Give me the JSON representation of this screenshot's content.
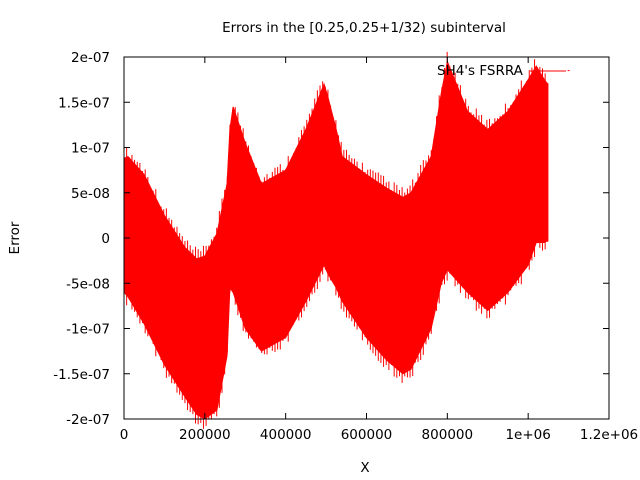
{
  "chart_data": {
    "type": "area",
    "title": "Errors in the [0.25,0.25+1/32) subinterval",
    "xlabel": "X",
    "ylabel": "Error",
    "xlim": [
      0,
      1200000
    ],
    "ylim": [
      -2e-07,
      2e-07
    ],
    "x_ticks": [
      {
        "value": 0,
        "label": "0"
      },
      {
        "value": 200000,
        "label": "200000"
      },
      {
        "value": 400000,
        "label": "400000"
      },
      {
        "value": 600000,
        "label": "600000"
      },
      {
        "value": 800000,
        "label": "800000"
      },
      {
        "value": 1000000,
        "label": "1e+06"
      },
      {
        "value": 1200000,
        "label": "1.2e+06"
      }
    ],
    "y_ticks": [
      {
        "value": 2e-07,
        "label": "2e-07"
      },
      {
        "value": 1.5e-07,
        "label": "1.5e-07"
      },
      {
        "value": 1e-07,
        "label": "1e-07"
      },
      {
        "value": 5e-08,
        "label": "5e-08"
      },
      {
        "value": 0,
        "label": "0"
      },
      {
        "value": -5e-08,
        "label": "-5e-08"
      },
      {
        "value": -1e-07,
        "label": "-1e-07"
      },
      {
        "value": -1.5e-07,
        "label": "-1.5e-07"
      },
      {
        "value": -2e-07,
        "label": "-2e-07"
      }
    ],
    "grid": false,
    "legend_position": "top-right",
    "series": [
      {
        "name": "SH4's FSRRA",
        "color": "#ff0000",
        "x": [
          0,
          10000,
          50000,
          100000,
          150000,
          180000,
          200000,
          230000,
          255000,
          262000,
          270000,
          300000,
          340000,
          400000,
          450000,
          495000,
          505000,
          525000,
          540000,
          600000,
          650000,
          690000,
          710000,
          760000,
          785000,
          800000,
          850000,
          900000,
          950000,
          1000000,
          1020000,
          1040000,
          1048576
        ],
        "upper": [
          8.8e-08,
          9e-08,
          7e-08,
          2.5e-08,
          -1e-08,
          -2.3e-08,
          -2e-08,
          5e-09,
          6e-08,
          1.2e-07,
          1.45e-07,
          1.05e-07,
          6e-08,
          7.5e-08,
          1.2e-07,
          1.7e-07,
          1.55e-07,
          1.2e-07,
          9e-08,
          7e-08,
          5.5e-08,
          4.5e-08,
          5e-08,
          9e-08,
          1.6e-07,
          1.95e-07,
          1.4e-07,
          1.2e-07,
          1.4e-07,
          1.75e-07,
          1.9e-07,
          1.75e-07,
          1.7e-07
        ],
        "lower": [
          -6e-08,
          -6.5e-08,
          -9.5e-08,
          -1.4e-07,
          -1.75e-07,
          -1.95e-07,
          -2e-07,
          -1.9e-07,
          -1.3e-07,
          -5.5e-08,
          -6e-08,
          -1e-07,
          -1.25e-07,
          -1.1e-07,
          -7e-08,
          -3e-08,
          -4e-08,
          -5.5e-08,
          -7e-08,
          -1.1e-07,
          -1.35e-07,
          -1.5e-07,
          -1.45e-07,
          -1e-07,
          -5e-08,
          -3.5e-08,
          -6e-08,
          -8e-08,
          -6e-08,
          -3e-08,
          -5e-09,
          -5e-09,
          -3e-09
        ]
      }
    ],
    "outliers": [
      {
        "x": 1100000,
        "y": 1.85e-07
      }
    ]
  }
}
